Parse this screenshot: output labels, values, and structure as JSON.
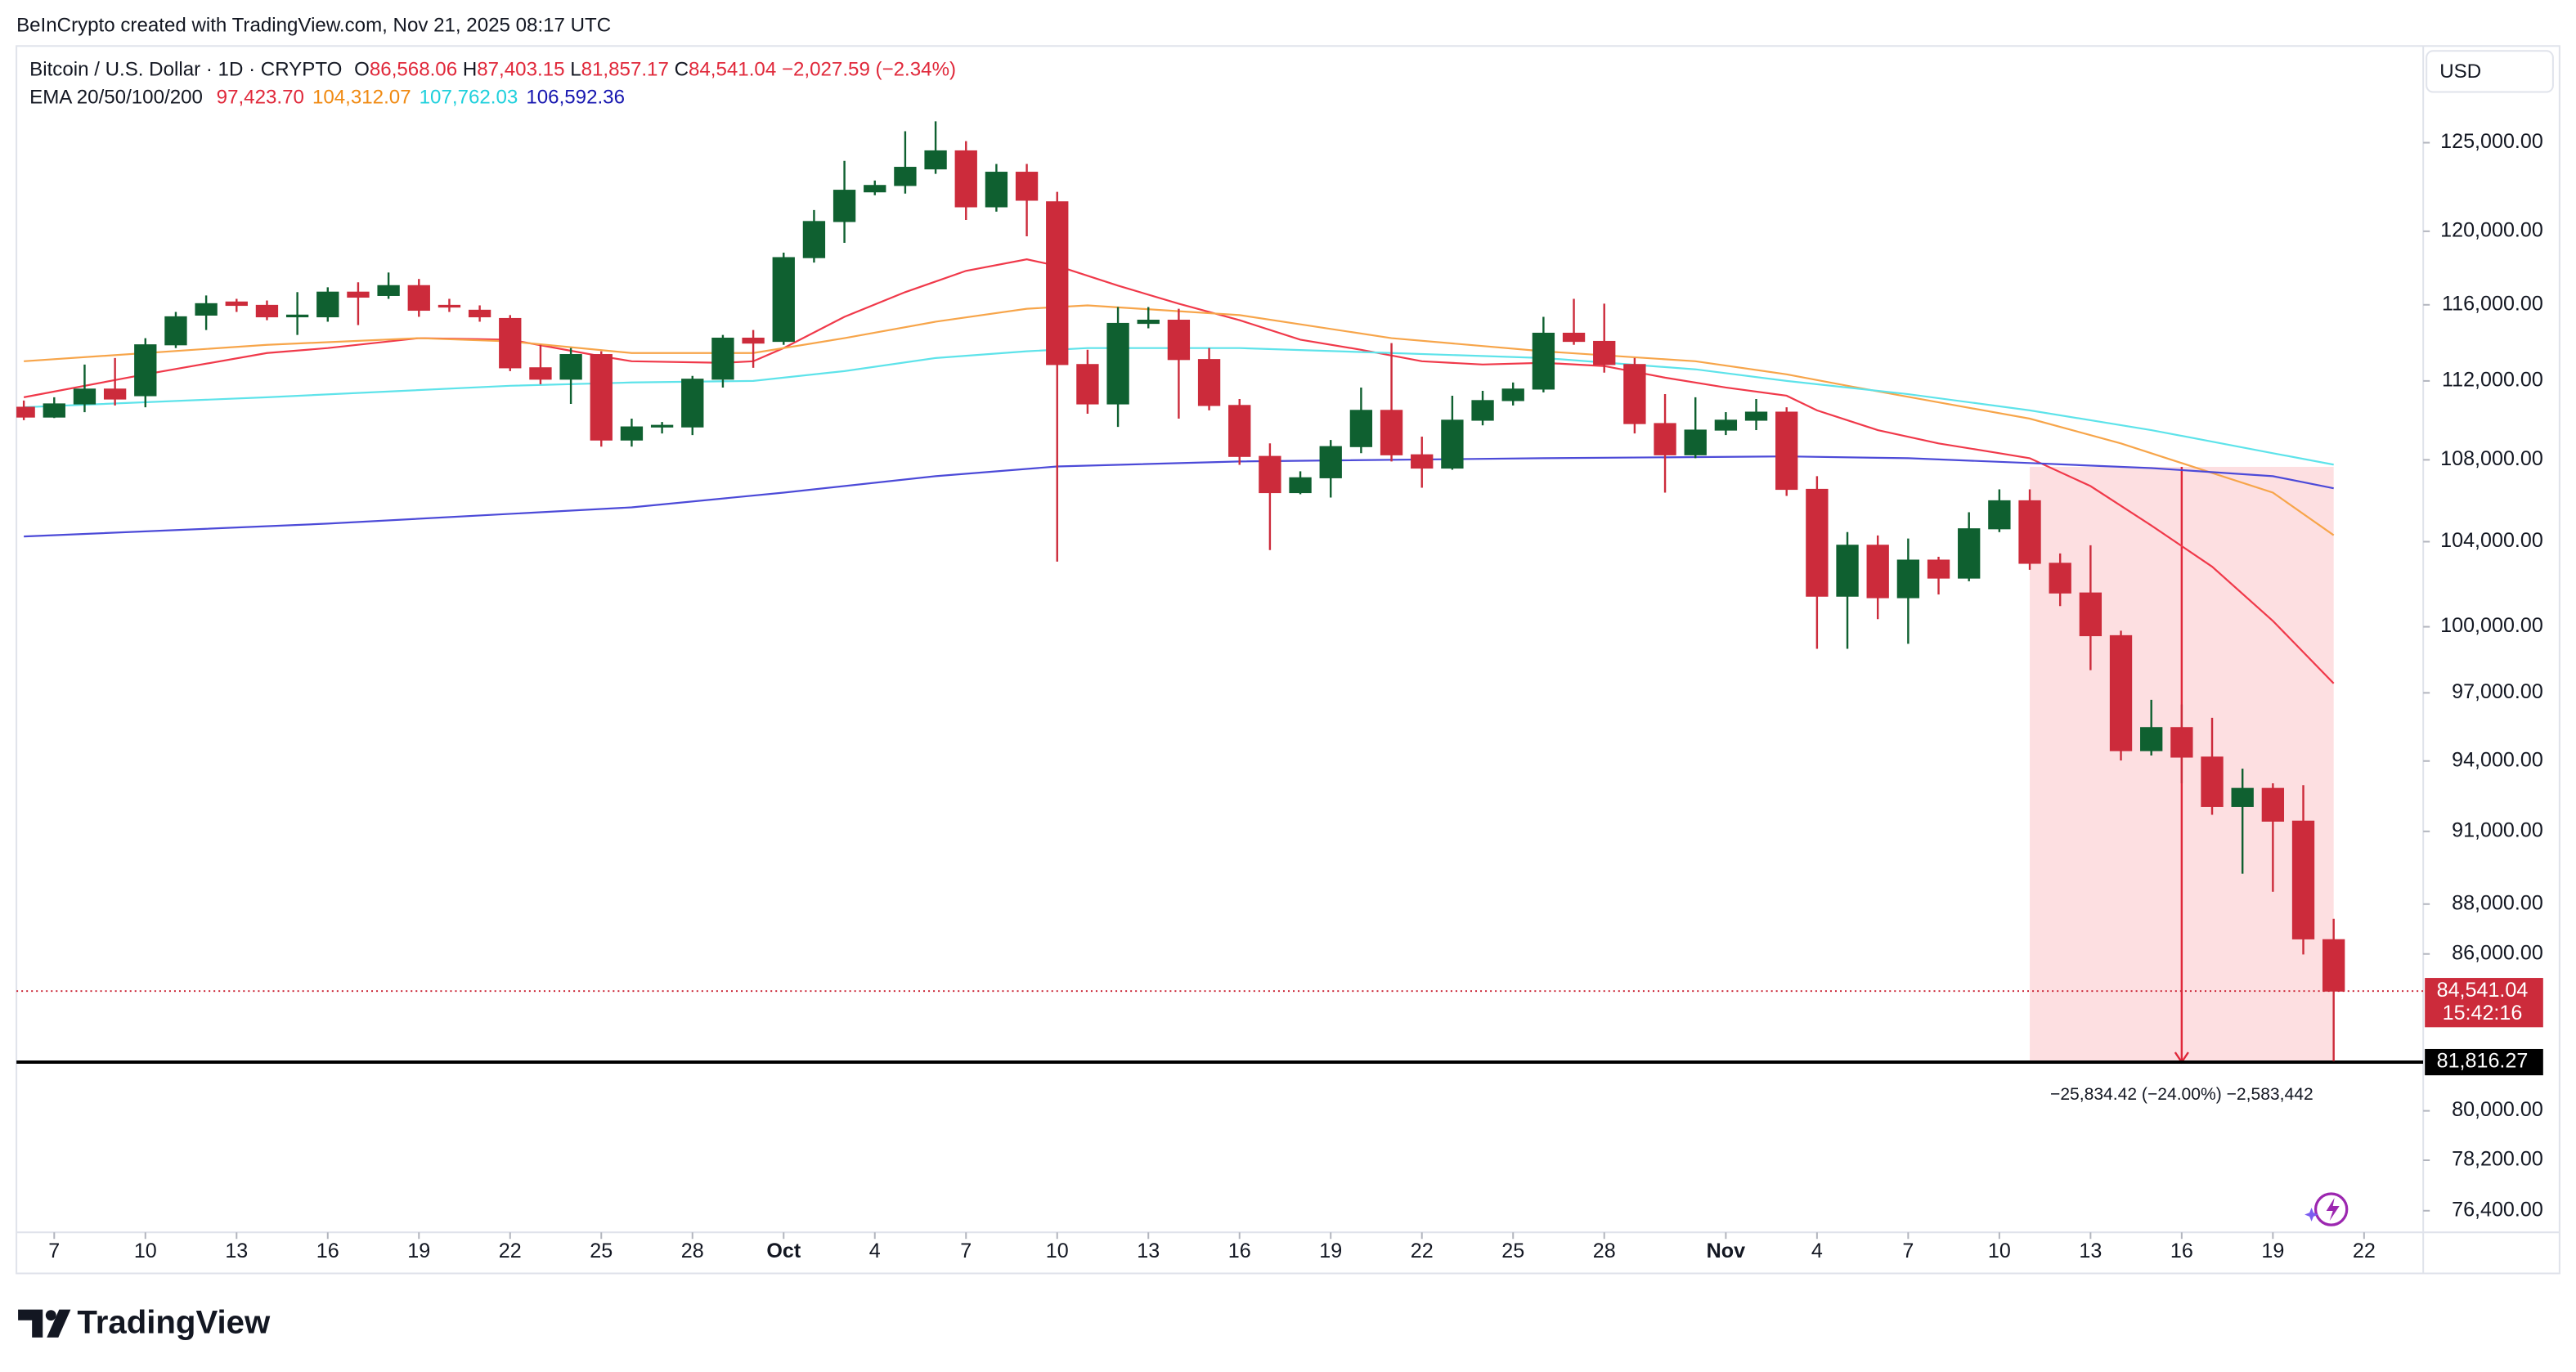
{
  "header": {
    "credit": "BeInCrypto created with TradingView.com, Nov 21, 2025 08:17 UTC"
  },
  "chart_data": {
    "type": "candlestick",
    "symbol": "Bitcoin / U.S. Dollar · 1D · CRYPTO",
    "ohlc_legend": [
      {
        "key": "O",
        "text": "86,568.06"
      },
      {
        "key": "H",
        "text": "87,403.15"
      },
      {
        "key": "L",
        "text": "81,857.17"
      },
      {
        "key": "C",
        "text": "84,541.04"
      }
    ],
    "change": "−2,027.59 (−2.34%)",
    "indicator": "EMA 20/50/100/200",
    "currency": "USD",
    "x": [
      "2025-09-06",
      "2025-09-07",
      "2025-09-08",
      "2025-09-09",
      "2025-09-10",
      "2025-09-11",
      "2025-09-12",
      "2025-09-13",
      "2025-09-14",
      "2025-09-15",
      "2025-09-16",
      "2025-09-17",
      "2025-09-18",
      "2025-09-19",
      "2025-09-20",
      "2025-09-21",
      "2025-09-22",
      "2025-09-23",
      "2025-09-24",
      "2025-09-25",
      "2025-09-26",
      "2025-09-27",
      "2025-09-28",
      "2025-09-29",
      "2025-09-30",
      "2025-10-01",
      "2025-10-02",
      "2025-10-03",
      "2025-10-04",
      "2025-10-05",
      "2025-10-06",
      "2025-10-07",
      "2025-10-08",
      "2025-10-09",
      "2025-10-10",
      "2025-10-11",
      "2025-10-12",
      "2025-10-13",
      "2025-10-14",
      "2025-10-15",
      "2025-10-16",
      "2025-10-17",
      "2025-10-18",
      "2025-10-19",
      "2025-10-20",
      "2025-10-21",
      "2025-10-22",
      "2025-10-23",
      "2025-10-24",
      "2025-10-25",
      "2025-10-26",
      "2025-10-27",
      "2025-10-28",
      "2025-10-29",
      "2025-10-30",
      "2025-10-31",
      "2025-11-01",
      "2025-11-02",
      "2025-11-03",
      "2025-11-04",
      "2025-11-05",
      "2025-11-06",
      "2025-11-07",
      "2025-11-08",
      "2025-11-09",
      "2025-11-10",
      "2025-11-11",
      "2025-11-12",
      "2025-11-13",
      "2025-11-14",
      "2025-11-15",
      "2025-11-16",
      "2025-11-17",
      "2025-11-18",
      "2025-11-19",
      "2025-11-20",
      "2025-11-21"
    ],
    "open": [
      110650,
      110150,
      110820,
      111580,
      111240,
      113880,
      115450,
      116150,
      115970,
      115360,
      115360,
      116680,
      116500,
      117030,
      115970,
      115710,
      115270,
      112680,
      112090,
      113370,
      108990,
      109650,
      109650,
      112090,
      114230,
      114060,
      118550,
      120540,
      122200,
      122560,
      123500,
      124530,
      121360,
      123310,
      121640,
      112850,
      110820,
      115010,
      115180,
      113110,
      110740,
      108170,
      106380,
      107110,
      108660,
      110490,
      108250,
      107590,
      109990,
      110990,
      111580,
      114490,
      114060,
      112850,
      109820,
      108250,
      109490,
      109990,
      110400,
      106540,
      101420,
      103830,
      101350,
      103120,
      102270,
      104620,
      105980,
      102970,
      101570,
      99590,
      94450,
      95460,
      94170,
      92050,
      92820,
      91430,
      86568.06
    ],
    "high": [
      110990,
      111160,
      112850,
      113190,
      114230,
      115620,
      116500,
      116320,
      116230,
      116680,
      116940,
      117210,
      117740,
      117390,
      116320,
      115970,
      115450,
      113880,
      113710,
      113540,
      110070,
      109900,
      112260,
      114400,
      114660,
      118820,
      121180,
      123960,
      122840,
      125660,
      126240,
      125090,
      123780,
      123780,
      122200,
      113620,
      115880,
      115880,
      115790,
      113710,
      111070,
      108820,
      107430,
      108990,
      111660,
      113970,
      109160,
      111240,
      111490,
      111920,
      115360,
      116320,
      116060,
      113190,
      111320,
      111160,
      110400,
      111070,
      110650,
      107190,
      104460,
      104300,
      104150,
      103280,
      105420,
      106540,
      106540,
      103440,
      103830,
      99820,
      96690,
      96480,
      95890,
      93670,
      93040,
      92960,
      87403.15
    ],
    "low": [
      109990,
      110100,
      110400,
      110740,
      110650,
      113710,
      114660,
      115620,
      115180,
      114400,
      115100,
      114920,
      116320,
      115360,
      115620,
      115100,
      112510,
      111830,
      110820,
      108660,
      108660,
      109320,
      109240,
      111660,
      112680,
      113880,
      118280,
      119360,
      122010,
      122100,
      123220,
      120630,
      121090,
      119720,
      103050,
      110320,
      109650,
      114750,
      110070,
      110490,
      107750,
      103600,
      106300,
      106140,
      108330,
      107920,
      106620,
      107510,
      109730,
      110740,
      111410,
      113880,
      112430,
      109320,
      106380,
      108080,
      109240,
      109490,
      106220,
      98990,
      98990,
      100350,
      99220,
      101500,
      102120,
      104460,
      102660,
      100960,
      98020,
      94020,
      94240,
      93040,
      91700,
      89240,
      88500,
      85980,
      81857.17
    ],
    "close": [
      110150,
      110820,
      111580,
      111070,
      113880,
      115360,
      116060,
      115970,
      115360,
      115450,
      116680,
      116410,
      117030,
      115710,
      115880,
      115360,
      112680,
      112090,
      113370,
      108990,
      109650,
      109730,
      112090,
      114230,
      113970,
      118550,
      120540,
      122290,
      122560,
      123590,
      124530,
      121360,
      123310,
      121730,
      112850,
      110820,
      115010,
      115180,
      113110,
      110740,
      108170,
      106380,
      107110,
      108660,
      110490,
      108250,
      107590,
      109990,
      110990,
      111580,
      114490,
      114060,
      112850,
      109820,
      108250,
      109490,
      109990,
      110400,
      106540,
      101420,
      103830,
      101350,
      103120,
      102270,
      104620,
      105980,
      102970,
      101570,
      99590,
      94450,
      95460,
      94170,
      92050,
      92820,
      91430,
      86600,
      84541.04
    ],
    "up_color": "#0f6030",
    "down_color": "#cc2b3b",
    "last_price": {
      "label": "84,541.04",
      "countdown": "15:42:16"
    },
    "lines": [
      {
        "color": "#f0394a",
        "label_color": "#e0283a",
        "value_label": "97,423.70",
        "x": [
          "2025-09-06",
          "2025-09-10",
          "2025-09-14",
          "2025-09-16",
          "2025-09-19",
          "2025-09-22",
          "2025-09-25",
          "2025-09-26",
          "2025-09-29",
          "2025-09-30",
          "2025-10-01",
          "2025-10-03",
          "2025-10-05",
          "2025-10-07",
          "2025-10-09",
          "2025-10-10",
          "2025-10-12",
          "2025-10-14",
          "2025-10-16",
          "2025-10-18",
          "2025-10-20",
          "2025-10-22",
          "2025-10-24",
          "2025-10-26",
          "2025-10-28",
          "2025-10-30",
          "2025-11-01",
          "2025-11-03",
          "2025-11-04",
          "2025-11-06",
          "2025-11-08",
          "2025-11-10",
          "2025-11-11",
          "2025-11-13",
          "2025-11-15",
          "2025-11-17",
          "2025-11-19",
          "2025-11-21"
        ],
        "values": [
          111160,
          112340,
          113450,
          113710,
          114230,
          114150,
          113280,
          113020,
          112940,
          113020,
          113710,
          115360,
          116680,
          117830,
          118460,
          118100,
          117030,
          116060,
          115180,
          114150,
          113620,
          113020,
          112850,
          112940,
          112770,
          112170,
          111660,
          111240,
          110490,
          109490,
          108820,
          108330,
          108080,
          106700,
          104780,
          102810,
          100270,
          97423.7
        ]
      },
      {
        "color": "#f7a54a",
        "label_color": "#f08a12",
        "value_label": "104,312.07",
        "x": [
          "2025-09-06",
          "2025-09-14",
          "2025-09-19",
          "2025-09-22",
          "2025-09-26",
          "2025-09-30",
          "2025-10-03",
          "2025-10-06",
          "2025-10-09",
          "2025-10-11",
          "2025-10-16",
          "2025-10-21",
          "2025-10-26",
          "2025-10-31",
          "2025-11-03",
          "2025-11-05",
          "2025-11-08",
          "2025-11-11",
          "2025-11-14",
          "2025-11-17",
          "2025-11-19",
          "2025-11-21"
        ],
        "values": [
          113020,
          113880,
          114230,
          114060,
          113450,
          113450,
          114230,
          115100,
          115790,
          115970,
          115450,
          114230,
          113540,
          113020,
          112340,
          111750,
          110900,
          110070,
          108820,
          107350,
          106380,
          104312.07
        ]
      },
      {
        "color": "#5ee3ea",
        "label_color": "#1fd0dc",
        "value_label": "107,762.03",
        "x": [
          "2025-09-06",
          "2025-09-14",
          "2025-09-22",
          "2025-09-26",
          "2025-09-30",
          "2025-10-03",
          "2025-10-06",
          "2025-10-09",
          "2025-10-11",
          "2025-10-16",
          "2025-10-21",
          "2025-10-26",
          "2025-10-31",
          "2025-11-03",
          "2025-11-07",
          "2025-11-11",
          "2025-11-15",
          "2025-11-19",
          "2025-11-21"
        ],
        "values": [
          110650,
          111160,
          111750,
          111920,
          112000,
          112510,
          113190,
          113540,
          113710,
          113710,
          113450,
          113190,
          112600,
          112000,
          111320,
          110490,
          109490,
          108330,
          107762.03
        ]
      },
      {
        "color": "#4c4ad8",
        "label_color": "#1717b0",
        "value_label": "106,592.36",
        "x": [
          "2025-09-06",
          "2025-09-16",
          "2025-09-26",
          "2025-10-01",
          "2025-10-06",
          "2025-10-10",
          "2025-10-16",
          "2025-10-26",
          "2025-11-03",
          "2025-11-07",
          "2025-11-11",
          "2025-11-15",
          "2025-11-19",
          "2025-11-21"
        ],
        "values": [
          104250,
          104870,
          105660,
          106380,
          107190,
          107670,
          107920,
          108080,
          108170,
          108080,
          107840,
          107590,
          107190,
          106592.36
        ]
      }
    ],
    "hline": {
      "value": 81816.27,
      "label": "81,816.27"
    },
    "measure": {
      "x": [
        "2025-11-11",
        "2025-11-21"
      ],
      "values": [
        107650.69,
        81816.27
      ],
      "label": "−25,834.42 (−24.00%) −2,583,442"
    },
    "log_scale": true,
    "grid": false,
    "xlim": [
      "2025-09-05",
      "2025-11-24"
    ],
    "ylim": [
      75500,
      130500
    ],
    "xticks": [
      {
        "value": "2025-09-07",
        "label": "7"
      },
      {
        "value": "2025-09-10",
        "label": "10"
      },
      {
        "value": "2025-09-13",
        "label": "13"
      },
      {
        "value": "2025-09-16",
        "label": "16"
      },
      {
        "value": "2025-09-19",
        "label": "19"
      },
      {
        "value": "2025-09-22",
        "label": "22"
      },
      {
        "value": "2025-09-25",
        "label": "25"
      },
      {
        "value": "2025-09-28",
        "label": "28"
      },
      {
        "value": "2025-10-01",
        "label": "Oct"
      },
      {
        "value": "2025-10-04",
        "label": "4"
      },
      {
        "value": "2025-10-07",
        "label": "7"
      },
      {
        "value": "2025-10-10",
        "label": "10"
      },
      {
        "value": "2025-10-13",
        "label": "13"
      },
      {
        "value": "2025-10-16",
        "label": "16"
      },
      {
        "value": "2025-10-19",
        "label": "19"
      },
      {
        "value": "2025-10-22",
        "label": "22"
      },
      {
        "value": "2025-10-25",
        "label": "25"
      },
      {
        "value": "2025-10-28",
        "label": "28"
      },
      {
        "value": "2025-11-01",
        "label": "Nov"
      },
      {
        "value": "2025-11-04",
        "label": "4"
      },
      {
        "value": "2025-11-07",
        "label": "7"
      },
      {
        "value": "2025-11-10",
        "label": "10"
      },
      {
        "value": "2025-11-13",
        "label": "13"
      },
      {
        "value": "2025-11-16",
        "label": "16"
      },
      {
        "value": "2025-11-19",
        "label": "19"
      },
      {
        "value": "2025-11-22",
        "label": "22"
      }
    ],
    "yticks": [
      {
        "value": 125000,
        "label": "125,000.00"
      },
      {
        "value": 120000,
        "label": "120,000.00"
      },
      {
        "value": 116000,
        "label": "116,000.00"
      },
      {
        "value": 112000,
        "label": "112,000.00"
      },
      {
        "value": 108000,
        "label": "108,000.00"
      },
      {
        "value": 104000,
        "label": "104,000.00"
      },
      {
        "value": 100000,
        "label": "100,000.00"
      },
      {
        "value": 97000,
        "label": "97,000.00"
      },
      {
        "value": 94000,
        "label": "94,000.00"
      },
      {
        "value": 91000,
        "label": "91,000.00"
      },
      {
        "value": 88000,
        "label": "88,000.00"
      },
      {
        "value": 86000,
        "label": "86,000.00"
      },
      {
        "value": 80000,
        "label": "80,000.00"
      },
      {
        "value": 78200,
        "label": "78,200.00"
      },
      {
        "value": 76400,
        "label": "76,400.00"
      }
    ]
  },
  "footer": {
    "brand": "TradingView"
  }
}
